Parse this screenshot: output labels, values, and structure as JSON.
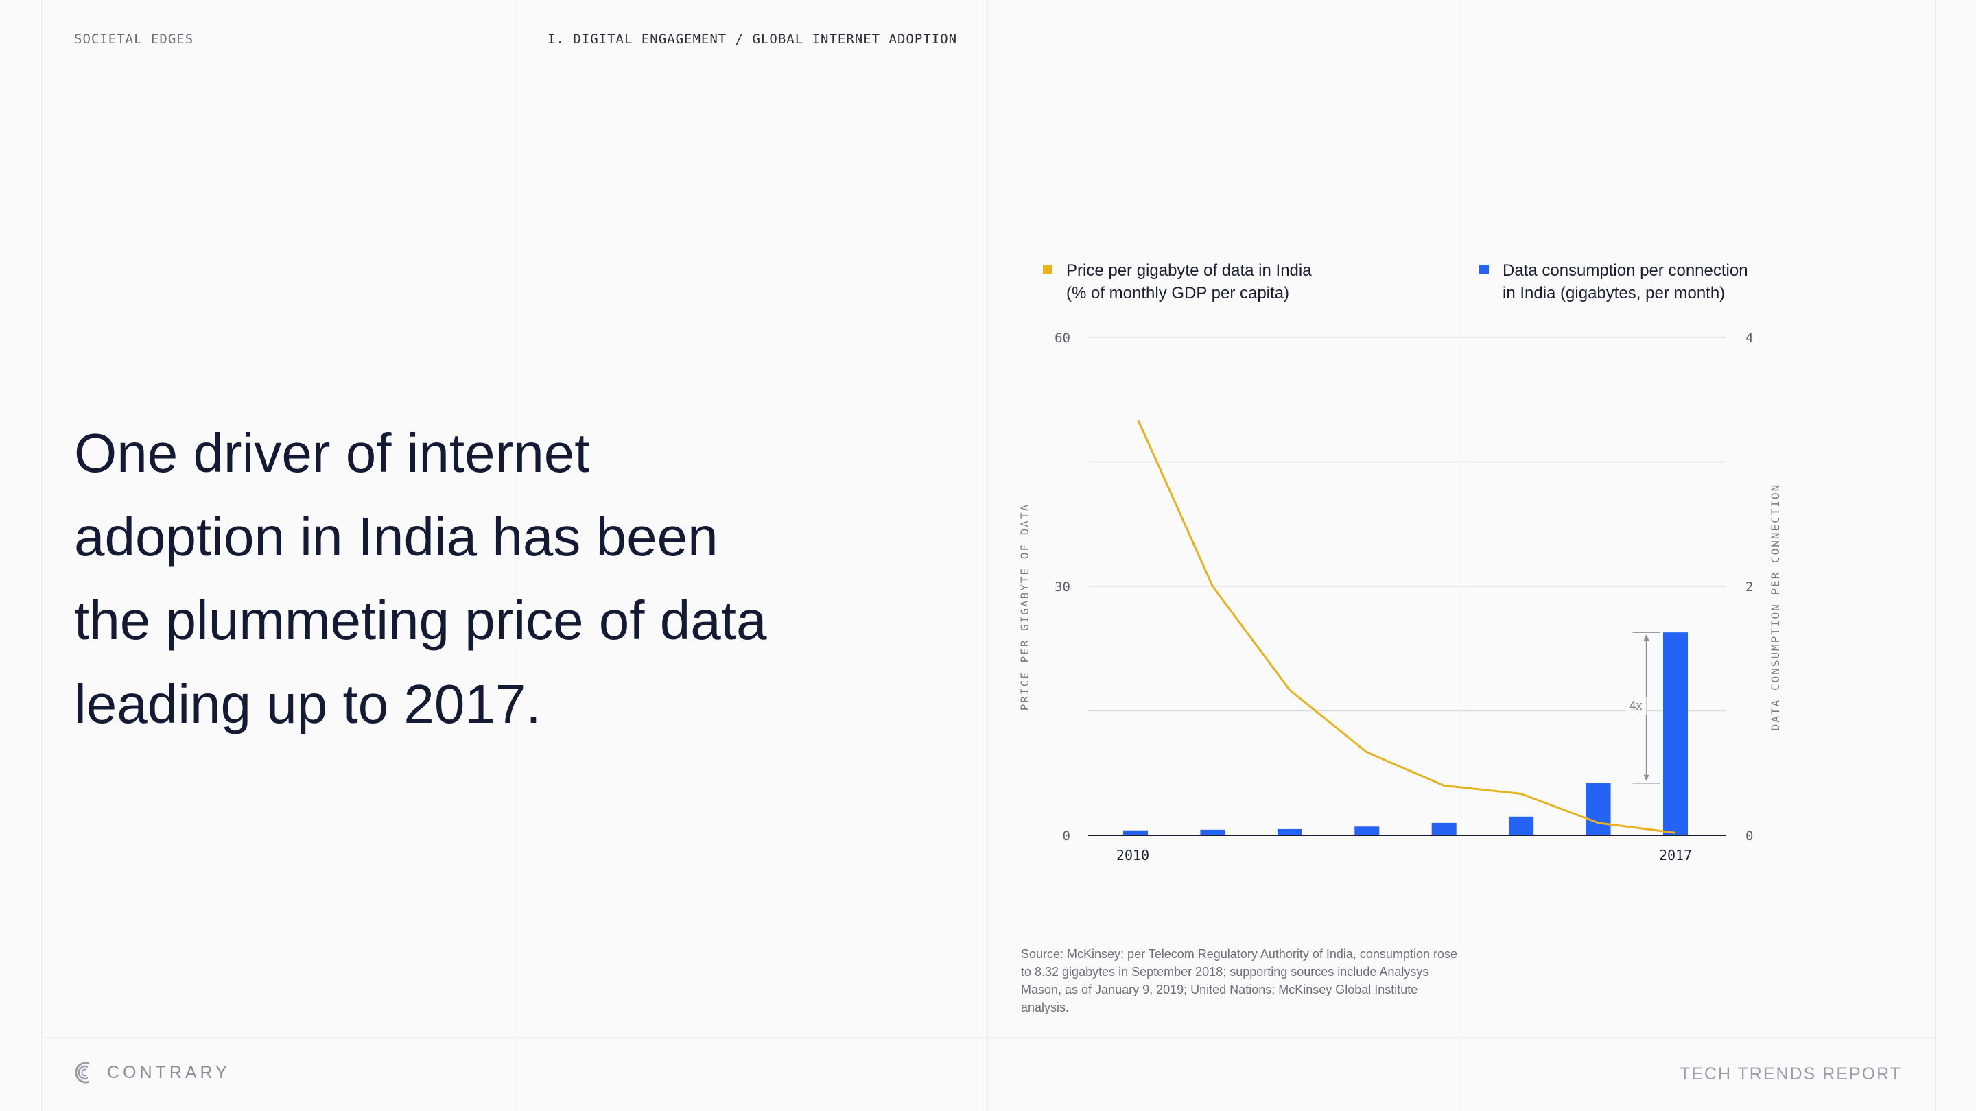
{
  "header": {
    "section": "SOCIETAL EDGES",
    "breadcrumb": "I. DIGITAL ENGAGEMENT / GLOBAL INTERNET ADOPTION"
  },
  "headline": "One driver of internet adoption in India has been the plummeting price of data leading up to 2017.",
  "colors": {
    "price": "#e6b31e",
    "consumption": "#2563f5",
    "text": "#141a34"
  },
  "chart_data": {
    "type": "bar+line",
    "x": [
      2010,
      2011,
      2012,
      2013,
      2014,
      2015,
      2016,
      2017
    ],
    "x_tick_labels": [
      "2010",
      "2017"
    ],
    "series": [
      {
        "name": "Price per gigabyte of data in India (% of monthly GDP per capita)",
        "type": "line",
        "axis": "left",
        "color": "#e6b31e",
        "values": [
          50,
          30,
          17.5,
          10,
          6,
          5,
          1.5,
          0.3
        ]
      },
      {
        "name": "Data consumption per connection in India (gigabytes, per month)",
        "type": "bar",
        "axis": "right",
        "color": "#2563f5",
        "values": [
          0.04,
          0.045,
          0.05,
          0.07,
          0.1,
          0.15,
          0.42,
          1.63
        ]
      }
    ],
    "legend": [
      {
        "line1": "Price per gigabyte of data in India",
        "line2": "(% of monthly GDP per capita)"
      },
      {
        "line1": "Data consumption per connection",
        "line2": "in India (gigabytes, per month)"
      }
    ],
    "ylabel_left": "PRICE PER GIGABYTE OF DATA",
    "ylabel_right": "DATA CONSUMPTION PER CONNECTION",
    "ylim_left": [
      0,
      60
    ],
    "ylim_right": [
      0,
      4
    ],
    "yticks_left": [
      "0",
      "30",
      "60"
    ],
    "yticks_right": [
      "0",
      "2",
      "4"
    ],
    "gridlines_left": [
      15,
      30,
      45,
      60
    ],
    "annotation": {
      "text": "4x",
      "from_index": 6,
      "to_index": 7
    },
    "grid": true,
    "legend_position": "top"
  },
  "source_note": "Source: McKinsey; per Telecom Regulatory Authority of India, consumption rose to 8.32 gigabytes in September 2018; supporting sources include Analysys Mason, as of January 9, 2019; United Nations; McKinsey Global Institute analysis.",
  "footer": {
    "brand": "CONTRARY",
    "report": "TECH TRENDS REPORT"
  }
}
